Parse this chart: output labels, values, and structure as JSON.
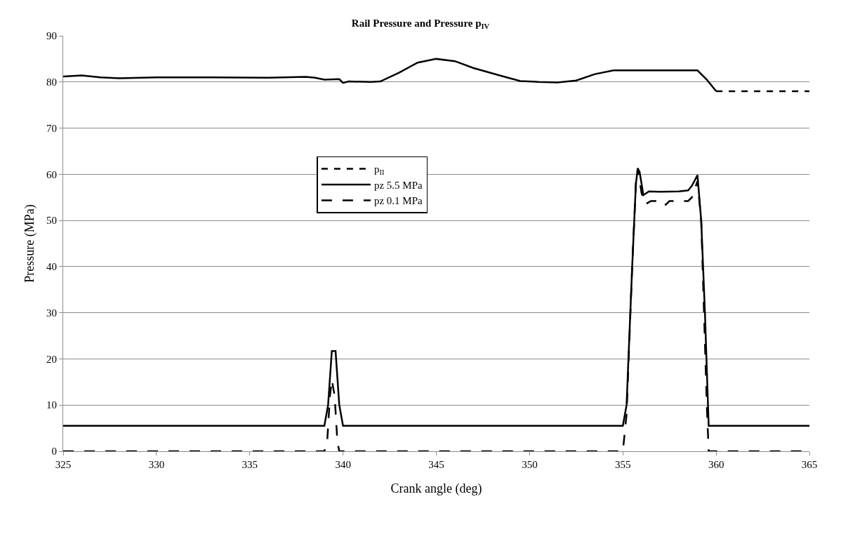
{
  "chart_data": {
    "type": "line",
    "title": "Rail Pressure and Pressure p$_{IV}$",
    "xlabel": "Crank angle (deg)",
    "ylabel": "Pressure (MPa)",
    "xlim": [
      325,
      365
    ],
    "xticks": [
      325,
      330,
      335,
      340,
      345,
      350,
      355,
      360,
      365
    ],
    "ylim": [
      0,
      90
    ],
    "yticks": [
      0,
      10,
      20,
      30,
      40,
      50,
      60,
      70,
      80,
      90
    ],
    "grid": "y",
    "legend": "center left",
    "marker": "none",
    "series": [
      {
        "name": null,
        "color": "#000000",
        "line_style": "solid",
        "x": [
          325,
          326,
          327,
          328,
          330,
          333,
          336,
          338,
          338.5,
          339,
          339.8,
          340,
          340.3,
          341.5,
          342,
          343,
          344,
          345,
          346,
          347,
          348.5,
          349.5,
          350.5,
          351.5,
          352.5,
          353.5,
          354.5,
          356,
          358,
          359,
          359.5,
          360
        ],
        "values": [
          81.2,
          81.4,
          81,
          80.8,
          81,
          81,
          80.9,
          81.1,
          80.9,
          80.5,
          80.6,
          79.8,
          80.1,
          80,
          80.1,
          82,
          84.2,
          85,
          84.5,
          83,
          81.3,
          80.2,
          80,
          79.9,
          80.3,
          81.7,
          82.5,
          82.5,
          82.5,
          82.5,
          80.5,
          78
        ]
      },
      {
        "name": "p$_{II}$",
        "color": "#000000",
        "line_style": "dashed",
        "x": [
          360,
          365
        ],
        "values": [
          78,
          78
        ]
      },
      {
        "name": "pz 5.5 MPa",
        "color": "#000000",
        "line_style": "solid",
        "x": [
          325,
          339,
          339.2,
          339.4,
          339.6,
          339.8,
          340,
          355,
          355.2,
          355.5,
          355.7,
          355.8,
          355.9,
          356.1,
          356.4,
          357,
          358,
          358.5,
          358.7,
          359,
          359.2,
          359.4,
          359.6,
          365
        ],
        "values": [
          5.5,
          5.5,
          10,
          21.7,
          21.7,
          10,
          5.5,
          5.5,
          10,
          40,
          58,
          61.3,
          60.5,
          55.5,
          56.3,
          56.2,
          56.3,
          56.5,
          57.5,
          59.8,
          50,
          30,
          5.5,
          5.5
        ]
      },
      {
        "name": "pz 0.1 MPa",
        "color": "#000000",
        "line_style": "longdash",
        "x": [
          325,
          339,
          339.15,
          339.3,
          339.4,
          339.55,
          339.7,
          339.8,
          355,
          355.2,
          355.5,
          355.7,
          355.8,
          356,
          356.2,
          356.5,
          357.2,
          357.3,
          357.5,
          358.5,
          358.7,
          359,
          359.2,
          359.5,
          359.6,
          365
        ],
        "values": [
          0,
          0,
          2,
          12,
          15.5,
          12,
          2,
          0,
          0,
          8,
          40,
          58,
          61.3,
          56,
          53.5,
          54.2,
          54.2,
          53.4,
          54.2,
          54.2,
          55,
          58.5,
          50,
          10,
          0,
          0
        ]
      }
    ]
  }
}
